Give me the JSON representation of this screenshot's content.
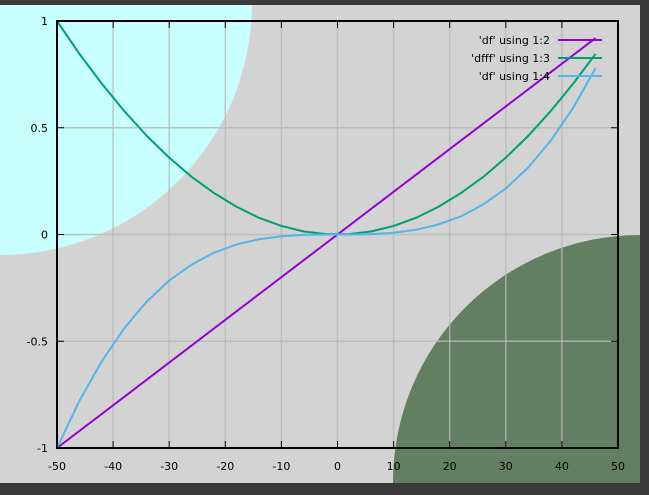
{
  "chart_data": {
    "type": "line",
    "xlim": [
      -50,
      50
    ],
    "ylim": [
      -1,
      1
    ],
    "xticks": [
      -50,
      -40,
      -30,
      -20,
      -10,
      0,
      10,
      20,
      30,
      40,
      50
    ],
    "yticks": [
      -1,
      -0.5,
      0,
      0.5,
      1
    ],
    "xtick_labels": [
      "-50",
      "-40",
      "-30",
      "-20",
      "-10",
      "0",
      "10",
      "20",
      "30",
      "40",
      "50"
    ],
    "ytick_labels": [
      "-1",
      "-0.5",
      "0",
      "0.5",
      "1"
    ],
    "grid": true,
    "legend_position": "top-right",
    "background_color": "#d3d3d3",
    "decorations": [
      {
        "name": "cyan-quarter-circle",
        "color": "#c8ffff",
        "corner": "top-left"
      },
      {
        "name": "green-quarter-circle",
        "color": "#637f62",
        "corner": "bottom-right"
      }
    ],
    "series": [
      {
        "name": "'df' using 1:2",
        "color": "#9400d3",
        "x": [
          -50,
          46
        ],
        "y": [
          -1,
          0.92
        ]
      },
      {
        "name": "'dfff' using 1:3",
        "color": "#009e73",
        "x": [
          -50,
          -46,
          -42,
          -38,
          -34,
          -30,
          -26,
          -22,
          -18,
          -14,
          -10,
          -6,
          -2,
          2,
          6,
          10,
          14,
          18,
          22,
          26,
          30,
          34,
          38,
          42,
          46
        ],
        "y": [
          1,
          0.846,
          0.706,
          0.578,
          0.462,
          0.36,
          0.27,
          0.194,
          0.13,
          0.078,
          0.04,
          0.014,
          0.002,
          0.002,
          0.014,
          0.04,
          0.078,
          0.13,
          0.194,
          0.27,
          0.36,
          0.462,
          0.578,
          0.706,
          0.846
        ]
      },
      {
        "name": "'df' using 1:4",
        "color": "#56b4e9",
        "x": [
          -50,
          -46,
          -42,
          -38,
          -34,
          -30,
          -26,
          -22,
          -18,
          -14,
          -10,
          -6,
          -2,
          2,
          6,
          10,
          14,
          18,
          22,
          26,
          30,
          34,
          38,
          42,
          46
        ],
        "y": [
          -1,
          -0.779,
          -0.593,
          -0.439,
          -0.314,
          -0.216,
          -0.141,
          -0.085,
          -0.047,
          -0.022,
          -0.008,
          -0.002,
          0.0,
          0.0,
          0.002,
          0.008,
          0.022,
          0.047,
          0.085,
          0.141,
          0.216,
          0.314,
          0.439,
          0.593,
          0.779
        ]
      }
    ]
  }
}
